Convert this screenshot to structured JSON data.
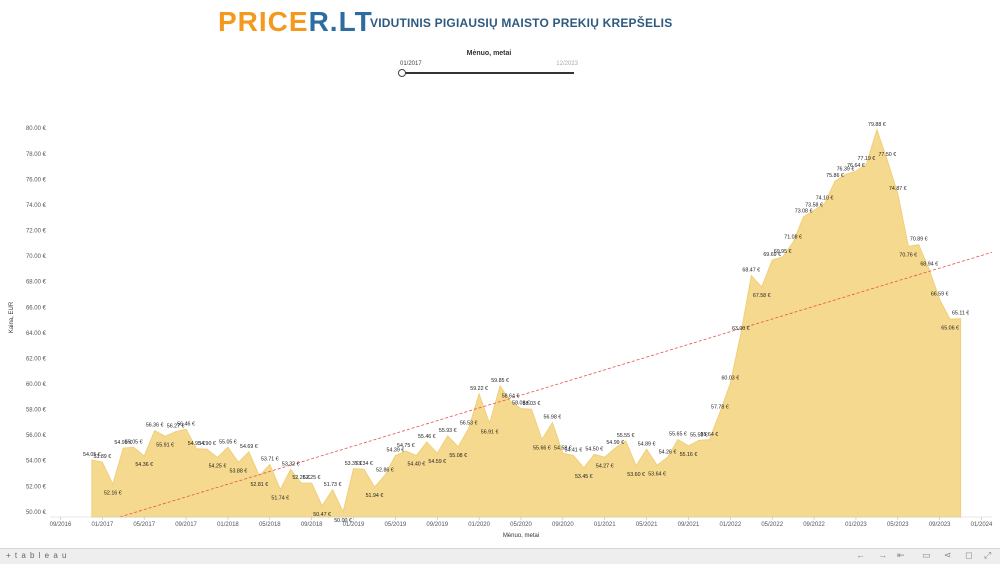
{
  "header": {
    "logo_part1": "PRICE",
    "logo_part2": "R.LT",
    "subtitle": "VIDUTINIS PIGIAUSIŲ MAISTO PREKIŲ KREPŠELIS"
  },
  "filter": {
    "title": "Mėnuo, metai",
    "from": "01/2017",
    "to": "12/2023",
    "range": [
      "01/2017",
      "12/2023"
    ]
  },
  "footer": {
    "logo": "+ t a b l e a u"
  },
  "colors": {
    "area": "#f5d98e",
    "area_stroke": "#f0cf7a",
    "trend": "#e7524e",
    "logo_orange": "#f39a1e",
    "logo_blue": "#2b6ca3"
  },
  "chart_data": {
    "type": "area",
    "xlabel": "Mėnuo, metai",
    "ylabel": "Kaina, EUR",
    "ylim": [
      49.6,
      80.8
    ],
    "yticks": [
      50,
      52,
      54,
      56,
      58,
      60,
      62,
      64,
      66,
      68,
      70,
      72,
      74,
      76,
      78,
      80
    ],
    "ytick_labels": [
      "50.00 €",
      "52.00 €",
      "54.00 €",
      "56.00 €",
      "58.00 €",
      "60.00 €",
      "62.00 €",
      "64.00 €",
      "66.00 €",
      "68.00 €",
      "70.00 €",
      "72.00 €",
      "74.00 €",
      "76.00 €",
      "78.00 €",
      "80.00 €"
    ],
    "xlim": [
      "2016-08",
      "2024-02"
    ],
    "xticks": [
      "2016-09",
      "2017-01",
      "2017-05",
      "2017-09",
      "2018-01",
      "2018-05",
      "2018-09",
      "2019-01",
      "2019-05",
      "2019-09",
      "2020-01",
      "2020-05",
      "2020-09",
      "2021-01",
      "2021-05",
      "2021-09",
      "2022-01",
      "2022-05",
      "2022-09",
      "2023-01",
      "2023-05",
      "2023-09",
      "2024-01"
    ],
    "xtick_labels": [
      "09/2016",
      "01/2017",
      "05/2017",
      "09/2017",
      "01/2018",
      "05/2018",
      "09/2018",
      "01/2019",
      "05/2019",
      "09/2019",
      "01/2020",
      "05/2020",
      "09/2020",
      "01/2021",
      "05/2021",
      "09/2021",
      "01/2022",
      "05/2022",
      "09/2022",
      "01/2023",
      "05/2023",
      "09/2023",
      "01/2024"
    ],
    "grid": false,
    "trendline": {
      "type": "linear",
      "dashed": true
    },
    "series": [
      {
        "points": [
          {
            "x": "2016-12",
            "y": 54.05,
            "label": "54.05 €"
          },
          {
            "x": "2017-01",
            "y": 53.89,
            "label": "53.89 €"
          },
          {
            "x": "2017-02",
            "y": 52.16,
            "label": "52.16 €"
          },
          {
            "x": "2017-03",
            "y": 54.99,
            "label": "54.99 €"
          },
          {
            "x": "2017-04",
            "y": 55.05,
            "label": "55.05 €"
          },
          {
            "x": "2017-05",
            "y": 54.36,
            "label": "54.36 €"
          },
          {
            "x": "2017-06",
            "y": 56.36,
            "label": "56.36 €"
          },
          {
            "x": "2017-07",
            "y": 55.91,
            "label": "55.91 €"
          },
          {
            "x": "2017-08",
            "y": 56.27,
            "label": "56.27 €"
          },
          {
            "x": "2017-09",
            "y": 56.46,
            "label": "56.46 €"
          },
          {
            "x": "2017-10",
            "y": 54.93,
            "label": "54.93 €"
          },
          {
            "x": "2017-11",
            "y": 54.9,
            "label": "54.90 €"
          },
          {
            "x": "2017-12",
            "y": 54.25,
            "label": "54.25 €"
          },
          {
            "x": "2018-01",
            "y": 55.05,
            "label": "55.05 €"
          },
          {
            "x": "2018-02",
            "y": 53.88,
            "label": "53.88 €"
          },
          {
            "x": "2018-03",
            "y": 54.69,
            "label": "54.69 €"
          },
          {
            "x": "2018-04",
            "y": 52.81,
            "label": "52.81 €"
          },
          {
            "x": "2018-05",
            "y": 53.71,
            "label": "53.71 €"
          },
          {
            "x": "2018-06",
            "y": 51.74,
            "label": "51.74 €"
          },
          {
            "x": "2018-07",
            "y": 53.32,
            "label": "53.32 €"
          },
          {
            "x": "2018-08",
            "y": 52.26,
            "label": "52.26 €"
          },
          {
            "x": "2018-09",
            "y": 52.25,
            "label": "52.25 €"
          },
          {
            "x": "2018-10",
            "y": 50.47,
            "label": "50.47 €"
          },
          {
            "x": "2018-11",
            "y": 51.73,
            "label": "51.73 €"
          },
          {
            "x": "2018-12",
            "y": 50.0,
            "label": "50.00 €"
          },
          {
            "x": "2019-01",
            "y": 53.37,
            "label": "53.37 €"
          },
          {
            "x": "2019-02",
            "y": 53.34,
            "label": "53.34 €"
          },
          {
            "x": "2019-03",
            "y": 51.94,
            "label": "51.94 €"
          },
          {
            "x": "2019-04",
            "y": 52.86,
            "label": "52.86 €"
          },
          {
            "x": "2019-05",
            "y": 54.39,
            "label": "54.39 €"
          },
          {
            "x": "2019-06",
            "y": 54.75,
            "label": "54.75 €"
          },
          {
            "x": "2019-07",
            "y": 54.4,
            "label": "54.40 €"
          },
          {
            "x": "2019-08",
            "y": 55.46,
            "label": "55.46 €"
          },
          {
            "x": "2019-09",
            "y": 54.59,
            "label": "54.59 €"
          },
          {
            "x": "2019-10",
            "y": 55.93,
            "label": "55.93 €"
          },
          {
            "x": "2019-11",
            "y": 55.08,
            "label": "55.08 €"
          },
          {
            "x": "2019-12",
            "y": 56.53,
            "label": "56.53 €"
          },
          {
            "x": "2020-01",
            "y": 59.22,
            "label": "59.22 €"
          },
          {
            "x": "2020-02",
            "y": 56.91,
            "label": "56.91 €"
          },
          {
            "x": "2020-03",
            "y": 59.85,
            "label": "59.85 €"
          },
          {
            "x": "2020-04",
            "y": 58.64,
            "label": "58.64 €"
          },
          {
            "x": "2020-05",
            "y": 58.08,
            "label": "58.08 €"
          },
          {
            "x": "2020-06",
            "y": 58.03,
            "label": "58.03 €"
          },
          {
            "x": "2020-07",
            "y": 55.66,
            "label": "55.66 €"
          },
          {
            "x": "2020-08",
            "y": 56.98,
            "label": "56.98 €"
          },
          {
            "x": "2020-09",
            "y": 54.58,
            "label": "54.58 €"
          },
          {
            "x": "2020-10",
            "y": 54.41,
            "label": "54.41 €"
          },
          {
            "x": "2020-11",
            "y": 53.45,
            "label": "53.45 €"
          },
          {
            "x": "2020-12",
            "y": 54.5,
            "label": "54.50 €"
          },
          {
            "x": "2021-01",
            "y": 54.27,
            "label": "54.27 €"
          },
          {
            "x": "2021-02",
            "y": 54.99,
            "label": "54.99 €"
          },
          {
            "x": "2021-03",
            "y": 55.55,
            "label": "55.55 €"
          },
          {
            "x": "2021-04",
            "y": 53.6,
            "label": "53.60 €"
          },
          {
            "x": "2021-05",
            "y": 54.89,
            "label": "54.89 €"
          },
          {
            "x": "2021-06",
            "y": 53.64,
            "label": "53.64 €"
          },
          {
            "x": "2021-07",
            "y": 54.26,
            "label": "54.26 €"
          },
          {
            "x": "2021-08",
            "y": 55.65,
            "label": "55.65 €"
          },
          {
            "x": "2021-09",
            "y": 55.16,
            "label": "55.16 €"
          },
          {
            "x": "2021-10",
            "y": 55.59,
            "label": "55.59 €"
          },
          {
            "x": "2021-11",
            "y": 55.64,
            "label": "55.64 €"
          },
          {
            "x": "2021-12",
            "y": 57.78,
            "label": "57.78 €"
          },
          {
            "x": "2022-01",
            "y": 60.03,
            "label": "60.03 €"
          },
          {
            "x": "2022-02",
            "y": 63.9,
            "label": "63.90 €"
          },
          {
            "x": "2022-03",
            "y": 68.47,
            "label": "68.47 €"
          },
          {
            "x": "2022-04",
            "y": 67.58,
            "label": "67.58 €"
          },
          {
            "x": "2022-05",
            "y": 69.69,
            "label": "69.69 €"
          },
          {
            "x": "2022-06",
            "y": 69.95,
            "label": "69.95 €"
          },
          {
            "x": "2022-07",
            "y": 71.08,
            "label": "71.08 €"
          },
          {
            "x": "2022-08",
            "y": 73.08,
            "label": "73.08 €"
          },
          {
            "x": "2022-09",
            "y": 73.58,
            "label": "73.58 €"
          },
          {
            "x": "2022-10",
            "y": 74.1,
            "label": "74.10 €"
          },
          {
            "x": "2022-11",
            "y": 75.86,
            "label": "75.86 €"
          },
          {
            "x": "2022-12",
            "y": 76.39,
            "label": "76.39 €"
          },
          {
            "x": "2023-01",
            "y": 76.64,
            "label": "76.64 €"
          },
          {
            "x": "2023-02",
            "y": 77.19,
            "label": "77.19 €"
          },
          {
            "x": "2023-03",
            "y": 79.88,
            "label": "79.88 €"
          },
          {
            "x": "2023-04",
            "y": 77.5,
            "label": "77.50 €"
          },
          {
            "x": "2023-05",
            "y": 74.87,
            "label": "74.87 €"
          },
          {
            "x": "2023-06",
            "y": 70.76,
            "label": "70.76 €"
          },
          {
            "x": "2023-07",
            "y": 70.89,
            "label": "70.89 €"
          },
          {
            "x": "2023-08",
            "y": 68.94,
            "label": "68.94 €"
          },
          {
            "x": "2023-09",
            "y": 66.59,
            "label": "66.59 €"
          },
          {
            "x": "2023-10",
            "y": 65.06,
            "label": "65.06 €"
          },
          {
            "x": "2023-11",
            "y": 65.11,
            "label": "65.11 €"
          }
        ]
      }
    ]
  }
}
